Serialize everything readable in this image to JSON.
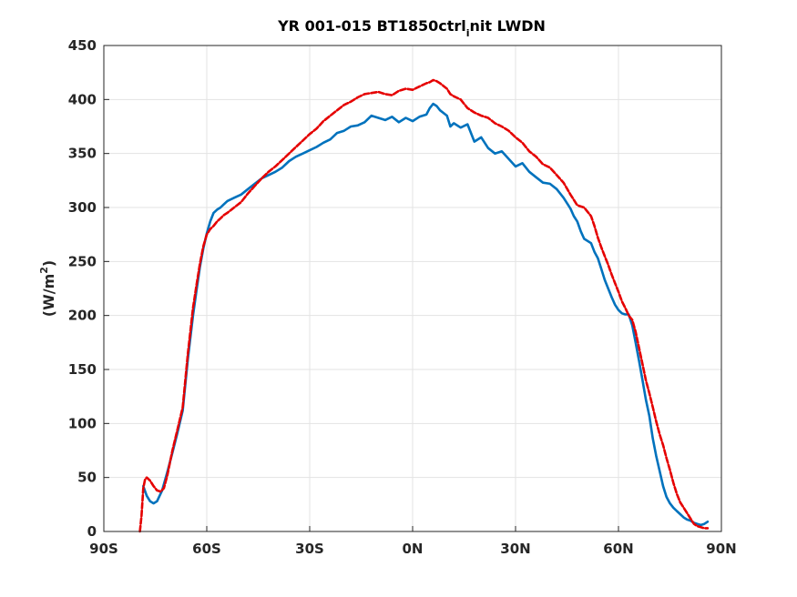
{
  "chart_data": {
    "type": "line",
    "title_main": "YR 001-015 BT1850ctrl",
    "title_sub": "i",
    "title_tail": "nit LWDN",
    "ylabel_main": "(W/m",
    "ylabel_sup": "2",
    "ylabel_close": ")",
    "xlabel": "",
    "xlim": [
      -90,
      90
    ],
    "ylim": [
      0,
      450
    ],
    "x_ticks": [
      -90,
      -60,
      -30,
      0,
      30,
      60,
      90
    ],
    "x_tick_labels": [
      "90S",
      "60S",
      "30S",
      "0N",
      "30N",
      "60N",
      "90N"
    ],
    "y_ticks": [
      0,
      50,
      100,
      150,
      200,
      250,
      300,
      350,
      400,
      450
    ],
    "y_tick_labels": [
      "0",
      "50",
      "100",
      "150",
      "200",
      "250",
      "300",
      "350",
      "400",
      "450"
    ],
    "grid": true,
    "colors": {
      "blue": "#0072bd",
      "red": "#e50000"
    },
    "series": [
      {
        "color": "#0072bd",
        "style": "solid",
        "x": [
          -78.5,
          -77.5,
          -76.5,
          -75.5,
          -74.5,
          -73,
          -71.5,
          -70,
          -68.5,
          -67,
          -65.5,
          -64,
          -63,
          -62,
          -61,
          -60,
          -59,
          -58,
          -57,
          -56,
          -55,
          -54,
          -52,
          -50,
          -48,
          -46,
          -44,
          -42,
          -40,
          -38,
          -36,
          -34,
          -32,
          -30,
          -28,
          -26,
          -24,
          -22,
          -20,
          -18,
          -16,
          -14,
          -12,
          -10,
          -8,
          -6,
          -4,
          -2,
          0,
          2,
          4,
          5,
          6,
          7,
          8,
          10,
          11,
          12,
          14,
          16,
          18,
          20,
          22,
          24,
          26,
          28,
          30,
          32,
          34,
          36,
          38,
          40,
          42,
          44,
          46,
          47,
          48,
          49,
          50,
          52,
          53,
          54,
          55,
          56,
          57,
          58,
          59,
          60,
          61,
          62,
          63,
          64,
          65,
          66,
          67,
          68,
          69,
          70,
          71,
          72,
          73,
          74,
          75,
          76,
          77,
          78,
          79,
          80,
          81,
          82,
          83,
          84,
          85,
          86
        ],
        "y": [
          42,
          33,
          28,
          26,
          28,
          38,
          55,
          73,
          92,
          112,
          160,
          200,
          223,
          245,
          262,
          276,
          287,
          295,
          298,
          300,
          303,
          306,
          309,
          312,
          317,
          322,
          327,
          330,
          333,
          337,
          343,
          347,
          350,
          353,
          356,
          360,
          363,
          369,
          371,
          375,
          376,
          379,
          385,
          383,
          381,
          384,
          379,
          383,
          380,
          384,
          386,
          392,
          396,
          394,
          390,
          385,
          375,
          378,
          374,
          377,
          361,
          365,
          355,
          350,
          352,
          345,
          338,
          341,
          333,
          328,
          323,
          322,
          317,
          309,
          299,
          292,
          287,
          278,
          271,
          267,
          259,
          253,
          243,
          233,
          225,
          217,
          210,
          205,
          202,
          201,
          201,
          191,
          175,
          158,
          140,
          122,
          107,
          86,
          70,
          56,
          42,
          32,
          26,
          22,
          19,
          16,
          13,
          11,
          10,
          8,
          7,
          6,
          7,
          9
        ]
      },
      {
        "color": "#e50000",
        "style": "dashed",
        "x": [
          -79.5,
          -79,
          -78.5,
          -78,
          -77.5,
          -76.5,
          -75.5,
          -74.5,
          -73.5,
          -72.5,
          -71.5,
          -70,
          -68.5,
          -67,
          -65.5,
          -64,
          -63,
          -62,
          -61,
          -60,
          -59,
          -58,
          -57,
          -56,
          -55,
          -54,
          -52,
          -50,
          -48,
          -46,
          -44,
          -42,
          -40,
          -38,
          -36,
          -34,
          -32,
          -30,
          -28,
          -26,
          -24,
          -22,
          -20,
          -18,
          -16,
          -14,
          -12,
          -10,
          -8,
          -6,
          -4,
          -2,
          0,
          2,
          4,
          5,
          6,
          7,
          8,
          10,
          11,
          12,
          14,
          16,
          18,
          20,
          22,
          24,
          26,
          28,
          30,
          32,
          34,
          36,
          38,
          40,
          42,
          44,
          46,
          48,
          50,
          52,
          53,
          54,
          55,
          56,
          57,
          58,
          59,
          60,
          61,
          62,
          63,
          64,
          65,
          66,
          67,
          68,
          69,
          70,
          71,
          72,
          73,
          74,
          75,
          76,
          77,
          78,
          79,
          80,
          81,
          82,
          83,
          84,
          85,
          86
        ],
        "y": [
          0,
          15,
          40,
          48,
          50,
          47,
          42,
          38,
          37,
          40,
          52,
          75,
          95,
          115,
          165,
          207,
          228,
          248,
          264,
          275,
          280,
          283,
          287,
          290,
          293,
          295,
          300,
          305,
          313,
          320,
          327,
          333,
          338,
          344,
          350,
          356,
          362,
          368,
          373,
          380,
          385,
          390,
          395,
          398,
          402,
          405,
          406,
          407,
          405,
          404,
          408,
          410,
          409,
          412,
          415,
          416,
          418,
          417,
          415,
          410,
          405,
          403,
          400,
          392,
          388,
          385,
          383,
          378,
          375,
          371,
          365,
          360,
          352,
          347,
          340,
          337,
          330,
          323,
          312,
          302,
          300,
          292,
          283,
          272,
          263,
          255,
          247,
          238,
          230,
          222,
          213,
          207,
          200,
          196,
          185,
          170,
          155,
          140,
          128,
          115,
          102,
          90,
          80,
          68,
          57,
          45,
          35,
          27,
          22,
          17,
          12,
          7,
          5,
          4,
          3,
          3
        ]
      }
    ]
  }
}
